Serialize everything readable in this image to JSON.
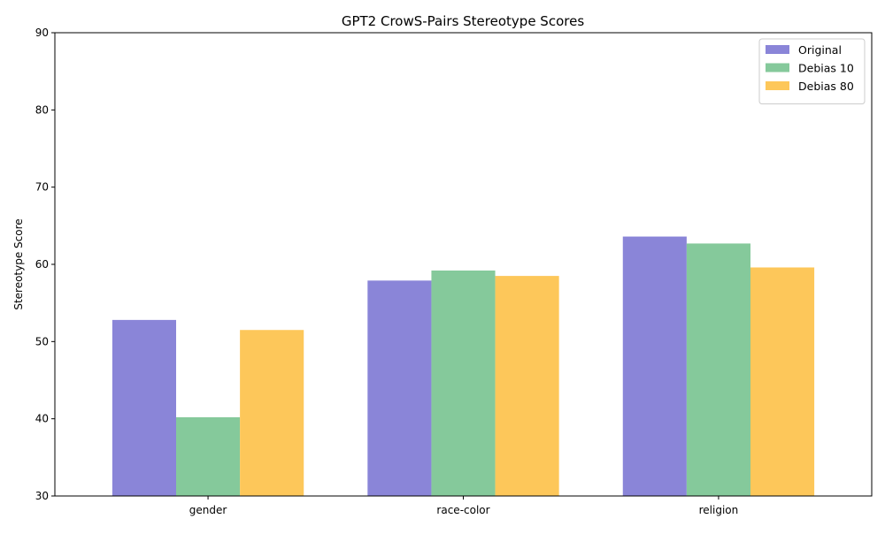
{
  "chart_data": {
    "type": "bar",
    "title": "GPT2 CrowS-Pairs Stereotype Scores",
    "xlabel": "",
    "ylabel": "Stereotype Score",
    "categories": [
      "gender",
      "race-color",
      "religion"
    ],
    "series": [
      {
        "name": "Original",
        "values": [
          52.8,
          57.9,
          63.6
        ],
        "color": "#8a85d8"
      },
      {
        "name": "Debias 10",
        "values": [
          40.2,
          59.2,
          62.7
        ],
        "color": "#85c99b"
      },
      {
        "name": "Debias 80",
        "values": [
          51.5,
          58.5,
          59.6
        ],
        "color": "#fdc75a"
      }
    ],
    "ylim": [
      30,
      90
    ],
    "yticks": [
      30,
      40,
      50,
      60,
      70,
      80,
      90
    ],
    "grid": false,
    "legend_position": "top-right"
  }
}
